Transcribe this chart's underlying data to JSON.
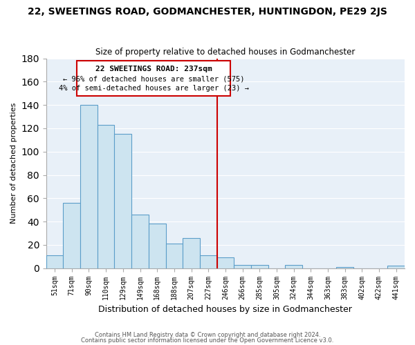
{
  "title": "22, SWEETINGS ROAD, GODMANCHESTER, HUNTINGDON, PE29 2JS",
  "subtitle": "Size of property relative to detached houses in Godmanchester",
  "xlabel": "Distribution of detached houses by size in Godmanchester",
  "ylabel": "Number of detached properties",
  "bar_labels": [
    "51sqm",
    "71sqm",
    "90sqm",
    "110sqm",
    "129sqm",
    "149sqm",
    "168sqm",
    "188sqm",
    "207sqm",
    "227sqm",
    "246sqm",
    "266sqm",
    "285sqm",
    "305sqm",
    "324sqm",
    "344sqm",
    "363sqm",
    "383sqm",
    "402sqm",
    "422sqm",
    "441sqm"
  ],
  "bar_values": [
    11,
    56,
    140,
    123,
    115,
    46,
    38,
    21,
    26,
    11,
    9,
    3,
    3,
    0,
    3,
    0,
    0,
    1,
    0,
    0,
    2
  ],
  "bar_color": "#cde4f0",
  "bar_edge_color": "#5b9dc9",
  "vline_x_index": 10,
  "vline_color": "#cc0000",
  "ylim": [
    0,
    180
  ],
  "yticks": [
    0,
    20,
    40,
    60,
    80,
    100,
    120,
    140,
    160,
    180
  ],
  "annotation_title": "22 SWEETINGS ROAD: 237sqm",
  "annotation_line1": "← 96% of detached houses are smaller (575)",
  "annotation_line2": "4% of semi-detached houses are larger (23) →",
  "annotation_box_color": "#ffffff",
  "annotation_box_edge": "#cc0000",
  "footer1": "Contains HM Land Registry data © Crown copyright and database right 2024.",
  "footer2": "Contains public sector information licensed under the Open Government Licence v3.0.",
  "background_color": "#e8f0f8"
}
